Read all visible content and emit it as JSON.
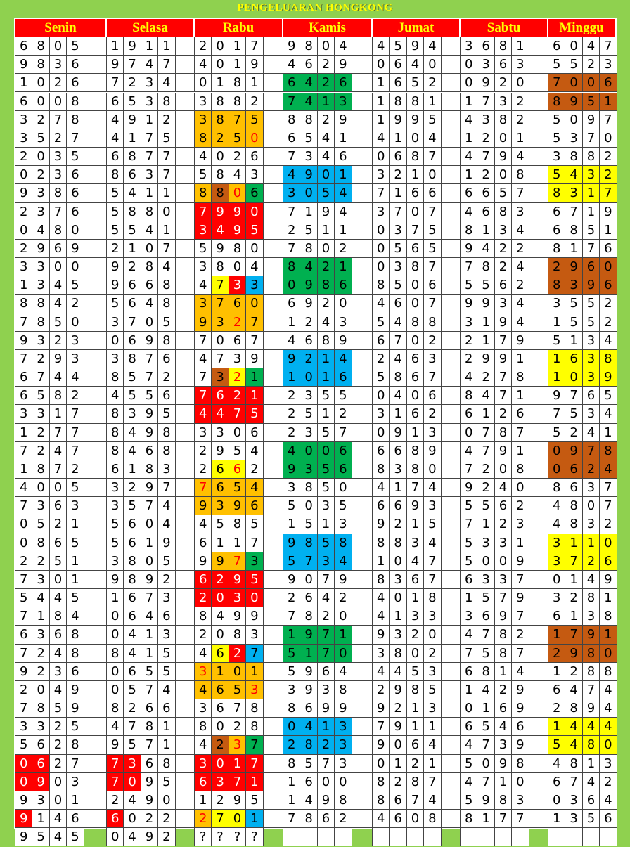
{
  "title": "PENGELUARAN HONGKONG",
  "days": [
    "Senin",
    "Selasa",
    "Rabu",
    "Kamis",
    "Jumat",
    "Sabtu",
    "Minggu"
  ],
  "rows": [
    [
      [
        6,
        8,
        0,
        5
      ],
      [
        1,
        9,
        1,
        1
      ],
      [
        2,
        0,
        1,
        7
      ],
      [
        9,
        8,
        0,
        4
      ],
      [
        4,
        5,
        9,
        4
      ],
      [
        3,
        6,
        8,
        1
      ],
      [
        6,
        0,
        4,
        7
      ]
    ],
    [
      [
        9,
        8,
        3,
        6
      ],
      [
        9,
        7,
        4,
        7
      ],
      [
        4,
        0,
        1,
        9
      ],
      [
        4,
        6,
        2,
        9
      ],
      [
        0,
        6,
        4,
        0
      ],
      [
        0,
        3,
        6,
        3
      ],
      [
        5,
        5,
        2,
        3
      ]
    ],
    [
      [
        1,
        0,
        2,
        6
      ],
      [
        7,
        2,
        3,
        4
      ],
      [
        0,
        1,
        8,
        1
      ],
      [
        6,
        4,
        2,
        6
      ],
      [
        1,
        6,
        5,
        2
      ],
      [
        0,
        9,
        2,
        0
      ],
      [
        7,
        0,
        0,
        6
      ]
    ],
    [
      [
        6,
        0,
        0,
        8
      ],
      [
        6,
        5,
        3,
        8
      ],
      [
        3,
        8,
        8,
        2
      ],
      [
        7,
        4,
        1,
        3
      ],
      [
        1,
        8,
        8,
        1
      ],
      [
        1,
        7,
        3,
        2
      ],
      [
        8,
        9,
        5,
        1
      ]
    ],
    [
      [
        3,
        2,
        7,
        8
      ],
      [
        4,
        9,
        1,
        2
      ],
      [
        3,
        8,
        7,
        5
      ],
      [
        8,
        8,
        2,
        9
      ],
      [
        1,
        9,
        9,
        5
      ],
      [
        4,
        3,
        8,
        2
      ],
      [
        5,
        0,
        9,
        7
      ]
    ],
    [
      [
        3,
        5,
        2,
        7
      ],
      [
        4,
        1,
        7,
        5
      ],
      [
        8,
        2,
        5,
        0
      ],
      [
        6,
        5,
        4,
        1
      ],
      [
        4,
        1,
        0,
        4
      ],
      [
        1,
        2,
        0,
        1
      ],
      [
        5,
        3,
        7,
        0
      ]
    ],
    [
      [
        2,
        0,
        3,
        5
      ],
      [
        6,
        8,
        7,
        7
      ],
      [
        4,
        0,
        2,
        6
      ],
      [
        7,
        3,
        4,
        6
      ],
      [
        0,
        6,
        8,
        7
      ],
      [
        4,
        7,
        9,
        4
      ],
      [
        3,
        8,
        8,
        2
      ]
    ],
    [
      [
        0,
        2,
        3,
        6
      ],
      [
        8,
        6,
        3,
        7
      ],
      [
        5,
        8,
        4,
        3
      ],
      [
        4,
        9,
        0,
        1
      ],
      [
        3,
        2,
        1,
        0
      ],
      [
        1,
        2,
        0,
        8
      ],
      [
        5,
        4,
        3,
        2
      ]
    ],
    [
      [
        9,
        3,
        8,
        6
      ],
      [
        5,
        4,
        1,
        1
      ],
      [
        8,
        8,
        0,
        6
      ],
      [
        3,
        0,
        5,
        4
      ],
      [
        7,
        1,
        6,
        6
      ],
      [
        6,
        6,
        5,
        7
      ],
      [
        8,
        3,
        1,
        7
      ]
    ],
    [
      [
        2,
        3,
        7,
        6
      ],
      [
        5,
        8,
        8,
        0
      ],
      [
        7,
        9,
        9,
        0
      ],
      [
        7,
        1,
        9,
        4
      ],
      [
        3,
        7,
        0,
        7
      ],
      [
        4,
        6,
        8,
        3
      ],
      [
        6,
        7,
        1,
        9
      ]
    ],
    [
      [
        0,
        4,
        8,
        0
      ],
      [
        5,
        5,
        4,
        1
      ],
      [
        3,
        4,
        9,
        5
      ],
      [
        2,
        5,
        1,
        1
      ],
      [
        0,
        3,
        7,
        5
      ],
      [
        8,
        1,
        3,
        4
      ],
      [
        6,
        8,
        5,
        1
      ]
    ],
    [
      [
        2,
        9,
        6,
        9
      ],
      [
        2,
        1,
        0,
        7
      ],
      [
        5,
        9,
        8,
        0
      ],
      [
        7,
        8,
        0,
        2
      ],
      [
        0,
        5,
        6,
        5
      ],
      [
        9,
        4,
        2,
        2
      ],
      [
        8,
        1,
        7,
        6
      ]
    ],
    [
      [
        3,
        3,
        0,
        0
      ],
      [
        9,
        2,
        8,
        4
      ],
      [
        3,
        8,
        0,
        4
      ],
      [
        8,
        4,
        2,
        1
      ],
      [
        0,
        3,
        8,
        7
      ],
      [
        7,
        8,
        2,
        4
      ],
      [
        2,
        9,
        6,
        0
      ]
    ],
    [
      [
        1,
        3,
        4,
        5
      ],
      [
        9,
        6,
        6,
        8
      ],
      [
        4,
        7,
        3,
        3
      ],
      [
        0,
        9,
        8,
        6
      ],
      [
        8,
        5,
        0,
        6
      ],
      [
        5,
        5,
        6,
        2
      ],
      [
        8,
        3,
        9,
        6
      ]
    ],
    [
      [
        8,
        8,
        4,
        2
      ],
      [
        5,
        6,
        4,
        8
      ],
      [
        3,
        7,
        6,
        0
      ],
      [
        6,
        9,
        2,
        0
      ],
      [
        4,
        6,
        0,
        7
      ],
      [
        9,
        9,
        3,
        4
      ],
      [
        3,
        5,
        5,
        2
      ]
    ],
    [
      [
        7,
        8,
        5,
        0
      ],
      [
        3,
        7,
        0,
        5
      ],
      [
        9,
        3,
        2,
        7
      ],
      [
        1,
        2,
        4,
        3
      ],
      [
        5,
        4,
        8,
        8
      ],
      [
        3,
        1,
        9,
        4
      ],
      [
        1,
        5,
        5,
        2
      ]
    ],
    [
      [
        9,
        3,
        2,
        3
      ],
      [
        0,
        6,
        9,
        8
      ],
      [
        7,
        0,
        6,
        7
      ],
      [
        4,
        6,
        8,
        9
      ],
      [
        6,
        7,
        0,
        2
      ],
      [
        2,
        1,
        7,
        9
      ],
      [
        5,
        1,
        3,
        4
      ]
    ],
    [
      [
        7,
        2,
        9,
        3
      ],
      [
        3,
        8,
        7,
        6
      ],
      [
        4,
        7,
        3,
        9
      ],
      [
        9,
        2,
        1,
        4
      ],
      [
        2,
        4,
        6,
        3
      ],
      [
        2,
        9,
        9,
        1
      ],
      [
        1,
        6,
        3,
        8
      ]
    ],
    [
      [
        6,
        7,
        4,
        4
      ],
      [
        8,
        5,
        7,
        2
      ],
      [
        7,
        3,
        2,
        1
      ],
      [
        1,
        0,
        1,
        6
      ],
      [
        5,
        8,
        6,
        7
      ],
      [
        4,
        2,
        7,
        8
      ],
      [
        1,
        0,
        3,
        9
      ]
    ],
    [
      [
        6,
        5,
        8,
        2
      ],
      [
        4,
        5,
        5,
        6
      ],
      [
        7,
        6,
        2,
        1
      ],
      [
        2,
        3,
        5,
        5
      ],
      [
        0,
        4,
        0,
        6
      ],
      [
        8,
        4,
        7,
        1
      ],
      [
        9,
        7,
        6,
        5
      ]
    ],
    [
      [
        3,
        3,
        1,
        7
      ],
      [
        8,
        3,
        9,
        5
      ],
      [
        4,
        4,
        7,
        5
      ],
      [
        2,
        5,
        1,
        2
      ],
      [
        3,
        1,
        6,
        2
      ],
      [
        6,
        1,
        2,
        6
      ],
      [
        7,
        5,
        3,
        4
      ]
    ],
    [
      [
        1,
        2,
        7,
        7
      ],
      [
        8,
        4,
        9,
        8
      ],
      [
        3,
        3,
        0,
        6
      ],
      [
        2,
        3,
        5,
        7
      ],
      [
        0,
        9,
        1,
        3
      ],
      [
        0,
        7,
        8,
        7
      ],
      [
        5,
        2,
        4,
        1
      ]
    ],
    [
      [
        7,
        2,
        4,
        7
      ],
      [
        8,
        4,
        6,
        8
      ],
      [
        2,
        9,
        5,
        4
      ],
      [
        4,
        0,
        0,
        6
      ],
      [
        6,
        6,
        8,
        9
      ],
      [
        4,
        7,
        9,
        1
      ],
      [
        0,
        9,
        7,
        8
      ]
    ],
    [
      [
        1,
        8,
        7,
        2
      ],
      [
        6,
        1,
        8,
        3
      ],
      [
        2,
        6,
        6,
        2
      ],
      [
        9,
        3,
        5,
        6
      ],
      [
        8,
        3,
        8,
        0
      ],
      [
        7,
        2,
        0,
        8
      ],
      [
        0,
        6,
        2,
        4
      ]
    ],
    [
      [
        4,
        0,
        0,
        5
      ],
      [
        3,
        2,
        9,
        7
      ],
      [
        7,
        6,
        5,
        4
      ],
      [
        3,
        8,
        5,
        0
      ],
      [
        4,
        1,
        7,
        4
      ],
      [
        9,
        2,
        4,
        0
      ],
      [
        8,
        6,
        3,
        7
      ]
    ],
    [
      [
        7,
        3,
        6,
        3
      ],
      [
        3,
        5,
        7,
        4
      ],
      [
        9,
        3,
        9,
        6
      ],
      [
        5,
        0,
        3,
        5
      ],
      [
        6,
        6,
        9,
        3
      ],
      [
        5,
        5,
        6,
        2
      ],
      [
        4,
        8,
        0,
        7
      ]
    ],
    [
      [
        0,
        5,
        2,
        1
      ],
      [
        5,
        6,
        0,
        4
      ],
      [
        4,
        5,
        8,
        5
      ],
      [
        1,
        5,
        1,
        3
      ],
      [
        9,
        2,
        1,
        5
      ],
      [
        7,
        1,
        2,
        3
      ],
      [
        4,
        8,
        3,
        2
      ]
    ],
    [
      [
        0,
        8,
        6,
        5
      ],
      [
        5,
        6,
        1,
        9
      ],
      [
        6,
        1,
        1,
        7
      ],
      [
        9,
        8,
        5,
        8
      ],
      [
        8,
        8,
        3,
        4
      ],
      [
        5,
        3,
        3,
        1
      ],
      [
        3,
        1,
        1,
        0
      ]
    ],
    [
      [
        2,
        2,
        5,
        1
      ],
      [
        3,
        8,
        0,
        5
      ],
      [
        9,
        9,
        7,
        3
      ],
      [
        5,
        7,
        3,
        4
      ],
      [
        1,
        0,
        4,
        7
      ],
      [
        5,
        0,
        0,
        9
      ],
      [
        3,
        7,
        2,
        6
      ]
    ],
    [
      [
        7,
        3,
        0,
        1
      ],
      [
        9,
        8,
        9,
        2
      ],
      [
        6,
        2,
        9,
        5
      ],
      [
        9,
        0,
        7,
        9
      ],
      [
        8,
        3,
        6,
        7
      ],
      [
        6,
        3,
        3,
        7
      ],
      [
        0,
        1,
        4,
        9
      ]
    ],
    [
      [
        5,
        4,
        4,
        5
      ],
      [
        1,
        6,
        7,
        3
      ],
      [
        2,
        0,
        3,
        0
      ],
      [
        2,
        6,
        4,
        2
      ],
      [
        4,
        0,
        1,
        8
      ],
      [
        1,
        5,
        7,
        9
      ],
      [
        3,
        2,
        8,
        1
      ]
    ],
    [
      [
        7,
        1,
        8,
        4
      ],
      [
        0,
        6,
        4,
        6
      ],
      [
        8,
        4,
        9,
        9
      ],
      [
        7,
        8,
        2,
        0
      ],
      [
        4,
        1,
        3,
        3
      ],
      [
        3,
        6,
        9,
        7
      ],
      [
        6,
        1,
        3,
        8
      ]
    ],
    [
      [
        6,
        3,
        6,
        8
      ],
      [
        0,
        4,
        1,
        3
      ],
      [
        2,
        0,
        8,
        3
      ],
      [
        1,
        9,
        7,
        1
      ],
      [
        9,
        3,
        2,
        0
      ],
      [
        4,
        7,
        8,
        2
      ],
      [
        1,
        7,
        9,
        1
      ]
    ],
    [
      [
        7,
        2,
        4,
        8
      ],
      [
        8,
        4,
        1,
        5
      ],
      [
        4,
        6,
        2,
        7
      ],
      [
        5,
        1,
        7,
        0
      ],
      [
        3,
        8,
        0,
        2
      ],
      [
        7,
        5,
        8,
        7
      ],
      [
        2,
        9,
        8,
        0
      ]
    ],
    [
      [
        9,
        2,
        3,
        6
      ],
      [
        0,
        6,
        5,
        5
      ],
      [
        3,
        1,
        0,
        1
      ],
      [
        5,
        9,
        6,
        4
      ],
      [
        4,
        4,
        5,
        3
      ],
      [
        6,
        8,
        1,
        4
      ],
      [
        1,
        2,
        8,
        8
      ]
    ],
    [
      [
        2,
        0,
        4,
        9
      ],
      [
        0,
        5,
        7,
        4
      ],
      [
        4,
        6,
        5,
        3
      ],
      [
        3,
        9,
        3,
        8
      ],
      [
        2,
        9,
        8,
        5
      ],
      [
        1,
        4,
        2,
        9
      ],
      [
        6,
        4,
        7,
        4
      ]
    ],
    [
      [
        7,
        8,
        5,
        9
      ],
      [
        8,
        2,
        6,
        6
      ],
      [
        3,
        6,
        7,
        8
      ],
      [
        8,
        6,
        9,
        9
      ],
      [
        9,
        2,
        1,
        3
      ],
      [
        0,
        1,
        6,
        9
      ],
      [
        2,
        8,
        9,
        4
      ]
    ],
    [
      [
        3,
        3,
        2,
        5
      ],
      [
        4,
        7,
        8,
        1
      ],
      [
        8,
        0,
        2,
        8
      ],
      [
        0,
        4,
        1,
        3
      ],
      [
        7,
        9,
        1,
        1
      ],
      [
        6,
        5,
        4,
        6
      ],
      [
        1,
        4,
        4,
        4
      ]
    ],
    [
      [
        5,
        6,
        2,
        8
      ],
      [
        9,
        5,
        7,
        1
      ],
      [
        4,
        2,
        3,
        7
      ],
      [
        2,
        8,
        2,
        3
      ],
      [
        9,
        0,
        6,
        4
      ],
      [
        4,
        7,
        3,
        9
      ],
      [
        5,
        4,
        8,
        0
      ]
    ],
    [
      [
        0,
        6,
        2,
        7
      ],
      [
        7,
        3,
        6,
        8
      ],
      [
        3,
        0,
        1,
        7
      ],
      [
        8,
        5,
        7,
        3
      ],
      [
        0,
        1,
        2,
        1
      ],
      [
        5,
        0,
        9,
        8
      ],
      [
        4,
        8,
        1,
        3
      ]
    ],
    [
      [
        0,
        9,
        0,
        3
      ],
      [
        7,
        0,
        9,
        5
      ],
      [
        6,
        3,
        7,
        1
      ],
      [
        1,
        6,
        0,
        0
      ],
      [
        8,
        2,
        8,
        7
      ],
      [
        4,
        7,
        1,
        0
      ],
      [
        6,
        7,
        4,
        2
      ]
    ],
    [
      [
        9,
        3,
        0,
        1
      ],
      [
        2,
        4,
        9,
        0
      ],
      [
        1,
        2,
        9,
        5
      ],
      [
        1,
        4,
        9,
        8
      ],
      [
        8,
        6,
        7,
        4
      ],
      [
        5,
        9,
        8,
        3
      ],
      [
        0,
        3,
        6,
        4
      ]
    ],
    [
      [
        9,
        1,
        4,
        6
      ],
      [
        6,
        0,
        2,
        2
      ],
      [
        2,
        7,
        0,
        1
      ],
      [
        7,
        8,
        6,
        2
      ],
      [
        4,
        6,
        0,
        8
      ],
      [
        8,
        1,
        7,
        7
      ],
      [
        1,
        3,
        5,
        6
      ]
    ],
    [
      [
        9,
        5,
        4,
        5
      ],
      [
        0,
        4,
        9,
        2
      ],
      [
        "?",
        "?",
        "?",
        "?"
      ],
      null,
      null,
      null,
      null
    ]
  ]
}
